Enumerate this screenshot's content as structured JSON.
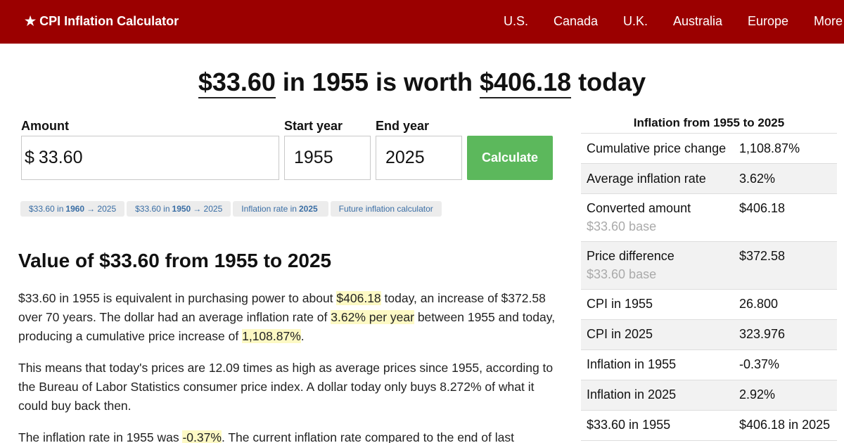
{
  "header": {
    "brand": "★ CPI Inflation Calculator",
    "nav": [
      "U.S.",
      "Canada",
      "U.K.",
      "Australia",
      "Europe",
      "More"
    ]
  },
  "headline": {
    "amount": "$33.60",
    "mid": " in 1955 is worth ",
    "result": "$406.18",
    "end": " today"
  },
  "form": {
    "amount_label": "Amount",
    "currency_symbol": "$",
    "amount_value": "33.60",
    "start_label": "Start year",
    "start_value": "1955",
    "end_label": "End year",
    "end_value": "2025",
    "calculate_label": "Calculate"
  },
  "pills": [
    {
      "pre": "$33.60 in",
      "bold": "1960",
      "post": "→ 2025"
    },
    {
      "pre": "$33.60 in",
      "bold": "1950",
      "post": "→ 2025"
    },
    {
      "pre": "Inflation rate in",
      "bold": "2025",
      "post": ""
    },
    {
      "pre": "Future inflation calculator",
      "bold": "",
      "post": ""
    }
  ],
  "article": {
    "title": "Value of $33.60 from 1955 to 2025",
    "p1": {
      "t1": "$33.60 in 1955 is equivalent in purchasing power to about ",
      "h1": "$406.18",
      "t2": " today, an increase of $372.58 over 70 years. The dollar had an average inflation rate of ",
      "h2": "3.62% per year",
      "t3": " between 1955 and today, producing a cumulative price increase of ",
      "h3": "1,108.87%",
      "t4": "."
    },
    "p2": "This means that today's prices are 12.09 times as high as average prices since 1955, according to the Bureau of Labor Statistics consumer price index. A dollar today only buys 8.272% of what it could buy back then.",
    "p3": {
      "t1": "The inflation rate in 1955 was ",
      "h1": "-0.37%",
      "t2": ". The current inflation rate compared to the end of last"
    }
  },
  "side": {
    "title": "Inflation from 1955 to 2025",
    "rows": [
      {
        "k": "Cumulative price change",
        "v": "1,108.87%",
        "sub": ""
      },
      {
        "k": "Average inflation rate",
        "v": "3.62%",
        "sub": ""
      },
      {
        "k": "Converted amount",
        "v": "$406.18",
        "sub": "$33.60 base"
      },
      {
        "k": "Price difference",
        "v": "$372.58",
        "sub": "$33.60 base"
      },
      {
        "k": "CPI in 1955",
        "v": "26.800",
        "sub": ""
      },
      {
        "k": "CPI in 2025",
        "v": "323.976",
        "sub": ""
      },
      {
        "k": "Inflation in 1955",
        "v": "-0.37%",
        "sub": ""
      },
      {
        "k": "Inflation in 2025",
        "v": "2.92%",
        "sub": ""
      },
      {
        "k": "$33.60 in 1955",
        "v": "$406.18 in 2025",
        "sub": ""
      }
    ]
  }
}
